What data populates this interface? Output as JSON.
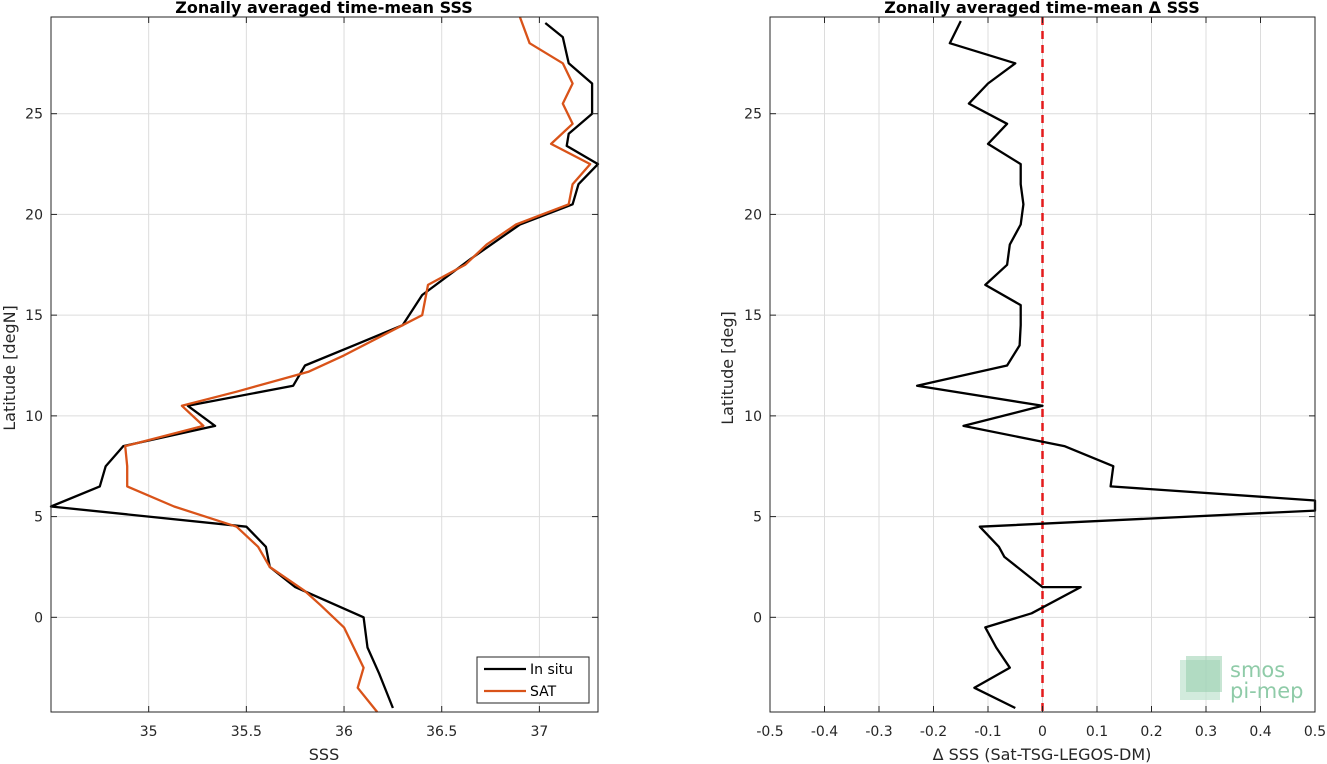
{
  "chart_data": [
    {
      "type": "line",
      "title": "Zonally averaged time-mean SSS",
      "xlabel": "SSS",
      "ylabel": "Latitude [degN]",
      "xlim": [
        34.5,
        37.3
      ],
      "ylim": [
        -4.7,
        29.8
      ],
      "xticks": [
        35,
        35.5,
        36,
        36.5,
        37
      ],
      "xtick_labels": [
        "35",
        "35.5",
        "36",
        "36.5",
        "37"
      ],
      "yticks": [
        0,
        5,
        10,
        15,
        20,
        25
      ],
      "ytick_labels": [
        "0",
        "5",
        "10",
        "15",
        "20",
        "25"
      ],
      "grid": true,
      "legend": {
        "location": "bottom-right",
        "entries": [
          "In situ",
          "SAT"
        ]
      },
      "series": [
        {
          "name": "In situ",
          "color": "#000000",
          "points": [
            [
              37.03,
              29.5
            ],
            [
              37.12,
              28.8
            ],
            [
              37.15,
              27.5
            ],
            [
              37.27,
              26.5
            ],
            [
              37.27,
              25.0
            ],
            [
              37.15,
              24.0
            ],
            [
              37.14,
              23.4
            ],
            [
              37.3,
              22.5
            ],
            [
              37.2,
              21.5
            ],
            [
              37.17,
              20.5
            ],
            [
              36.9,
              19.5
            ],
            [
              36.65,
              17.8
            ],
            [
              36.4,
              16.0
            ],
            [
              36.3,
              14.5
            ],
            [
              36.05,
              13.5
            ],
            [
              35.8,
              12.5
            ],
            [
              35.74,
              11.5
            ],
            [
              35.2,
              10.5
            ],
            [
              35.34,
              9.5
            ],
            [
              34.87,
              8.5
            ],
            [
              34.78,
              7.5
            ],
            [
              34.75,
              6.5
            ],
            [
              34.5,
              5.5
            ],
            [
              35.5,
              4.5
            ],
            [
              35.6,
              3.5
            ],
            [
              35.62,
              2.5
            ],
            [
              35.75,
              1.5
            ],
            [
              36.1,
              0.0
            ],
            [
              36.12,
              -1.5
            ],
            [
              36.18,
              -2.8
            ],
            [
              36.25,
              -4.5
            ]
          ]
        },
        {
          "name": "SAT",
          "color": "#D95319",
          "points": [
            [
              36.9,
              29.8
            ],
            [
              36.95,
              28.5
            ],
            [
              37.12,
              27.5
            ],
            [
              37.17,
              26.5
            ],
            [
              37.12,
              25.5
            ],
            [
              37.17,
              24.5
            ],
            [
              37.06,
              23.5
            ],
            [
              37.26,
              22.5
            ],
            [
              37.17,
              21.5
            ],
            [
              37.15,
              20.5
            ],
            [
              36.88,
              19.5
            ],
            [
              36.73,
              18.5
            ],
            [
              36.62,
              17.5
            ],
            [
              36.43,
              16.5
            ],
            [
              36.4,
              15.0
            ],
            [
              36.3,
              14.5
            ],
            [
              36.0,
              13.0
            ],
            [
              35.82,
              12.2
            ],
            [
              35.45,
              11.2
            ],
            [
              35.17,
              10.5
            ],
            [
              35.28,
              9.5
            ],
            [
              34.88,
              8.5
            ],
            [
              34.89,
              7.5
            ],
            [
              34.89,
              6.5
            ],
            [
              35.13,
              5.5
            ],
            [
              35.45,
              4.5
            ],
            [
              35.56,
              3.5
            ],
            [
              35.62,
              2.5
            ],
            [
              35.8,
              1.3
            ],
            [
              35.88,
              0.6
            ],
            [
              36.0,
              -0.5
            ],
            [
              36.1,
              -2.5
            ],
            [
              36.07,
              -3.5
            ],
            [
              36.17,
              -4.7
            ]
          ]
        }
      ]
    },
    {
      "type": "line",
      "title": "Zonally averaged time-mean Δ SSS",
      "xlabel": "Δ SSS (Sat-TSG-LEGOS-DM)",
      "ylabel": "Latitude [deg]",
      "xlim": [
        -0.5,
        0.5
      ],
      "ylim": [
        -4.7,
        29.8
      ],
      "xticks": [
        -0.5,
        -0.4,
        -0.3,
        -0.2,
        -0.1,
        0,
        0.1,
        0.2,
        0.3,
        0.4,
        0.5
      ],
      "xtick_labels": [
        "-0.5",
        "-0.4",
        "-0.3",
        "-0.2",
        "-0.1",
        "0",
        "0.1",
        "0.2",
        "0.3",
        "0.4",
        "0.5"
      ],
      "yticks": [
        0,
        5,
        10,
        15,
        20,
        25
      ],
      "ytick_labels": [
        "0",
        "5",
        "10",
        "15",
        "20",
        "25"
      ],
      "grid": true,
      "reference_line": {
        "x": 0,
        "color": "#E41A1C",
        "style": "dashed"
      },
      "series": [
        {
          "color": "#000000",
          "points": [
            [
              -0.15,
              29.6
            ],
            [
              -0.17,
              28.5
            ],
            [
              -0.05,
              27.5
            ],
            [
              -0.1,
              26.5
            ],
            [
              -0.135,
              25.5
            ],
            [
              -0.065,
              24.5
            ],
            [
              -0.1,
              23.5
            ],
            [
              -0.04,
              22.5
            ],
            [
              -0.04,
              21.5
            ],
            [
              -0.035,
              20.5
            ],
            [
              -0.04,
              19.5
            ],
            [
              -0.06,
              18.5
            ],
            [
              -0.065,
              17.5
            ],
            [
              -0.105,
              16.5
            ],
            [
              -0.04,
              15.5
            ],
            [
              -0.04,
              14.5
            ],
            [
              -0.042,
              13.5
            ],
            [
              -0.065,
              12.5
            ],
            [
              -0.23,
              11.5
            ],
            [
              0.0,
              10.5
            ],
            [
              -0.145,
              9.5
            ],
            [
              0.04,
              8.5
            ],
            [
              0.13,
              7.5
            ],
            [
              0.125,
              6.5
            ],
            [
              0.5,
              5.8
            ],
            [
              0.5,
              5.3
            ],
            [
              -0.115,
              4.5
            ],
            [
              -0.08,
              3.5
            ],
            [
              -0.07,
              3.0
            ],
            [
              0.0,
              1.5
            ],
            [
              0.07,
              1.5
            ],
            [
              -0.02,
              0.2
            ],
            [
              -0.105,
              -0.5
            ],
            [
              -0.085,
              -1.5
            ],
            [
              -0.06,
              -2.5
            ],
            [
              -0.125,
              -3.5
            ],
            [
              -0.05,
              -4.5
            ]
          ]
        }
      ]
    }
  ],
  "watermark": {
    "line1": "smos",
    "line2": "pi-mep",
    "color": "#8FCBA8"
  }
}
